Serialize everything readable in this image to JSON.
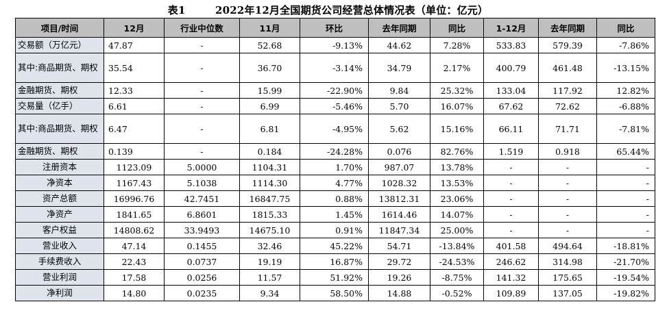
{
  "title": "表1        2022年12月全国期货公司经营总体情况表（单位：亿元）",
  "headers": [
    "项目/时间",
    "12月",
    "行业中位数",
    "11月",
    "环比",
    "去年同期",
    "同比",
    "1-12月",
    "去年同期",
    "同比"
  ],
  "rows": [
    {
      "label": "交易额（万亿元）",
      "cells": [
        "47.87",
        "-",
        "52.68",
        "-9.13%",
        "44.62",
        "7.28%",
        "533.83",
        "579.39",
        "-7.86%"
      ]
    },
    {
      "label": "其中:商品期货、期权",
      "cells": [
        "35.54",
        "-",
        "36.70",
        "-3.14%",
        "34.79",
        "2.17%",
        "400.79",
        "461.48",
        "-13.15%"
      ]
    },
    {
      "label": "金融期货、期权",
      "cells": [
        "12.33",
        "-",
        "15.99",
        "-22.90%",
        "9.84",
        "25.32%",
        "133.04",
        "117.92",
        "12.82%"
      ]
    },
    {
      "label": "交易量（亿手）",
      "cells": [
        "6.61",
        "-",
        "6.99",
        "-5.46%",
        "5.70",
        "16.07%",
        "67.62",
        "72.62",
        "-6.88%"
      ]
    },
    {
      "label": "其中:商品期货、期权",
      "cells": [
        "6.47",
        "-",
        "6.81",
        "-4.95%",
        "5.62",
        "15.16%",
        "66.11",
        "71.71",
        "-7.81%"
      ]
    },
    {
      "label": "金融期货、期权",
      "cells": [
        "0.139",
        "-",
        "0.184",
        "-24.28%",
        "0.076",
        "82.76%",
        "1.519",
        "0.918",
        "65.44%"
      ]
    },
    {
      "label": "注册资本",
      "cells": [
        "1123.09",
        "5.0000",
        "1104.31",
        "1.70%",
        "987.07",
        "13.78%",
        "-",
        "-",
        "-"
      ]
    },
    {
      "label": "净资本",
      "cells": [
        "1167.43",
        "5.1038",
        "1114.30",
        "4.77%",
        "1028.32",
        "13.53%",
        "-",
        "-",
        "-"
      ]
    },
    {
      "label": "资产总额",
      "cells": [
        "16996.76",
        "42.7451",
        "16847.75",
        "0.88%",
        "13812.31",
        "23.06%",
        "-",
        "-",
        "-"
      ]
    },
    {
      "label": "净资产",
      "cells": [
        "1841.65",
        "6.8601",
        "1815.33",
        "1.45%",
        "1614.46",
        "14.07%",
        "-",
        "-",
        "-"
      ]
    },
    {
      "label": "客户权益",
      "cells": [
        "14808.62",
        "33.9493",
        "14675.10",
        "0.91%",
        "11847.34",
        "25.00%",
        "-",
        "-",
        "-"
      ]
    },
    {
      "label": "营业收入",
      "cells": [
        "47.14",
        "0.1455",
        "32.46",
        "45.22%",
        "54.71",
        "-13.84%",
        "401.58",
        "494.64",
        "-18.81%"
      ]
    },
    {
      "label": "手续费收入",
      "cells": [
        "22.43",
        "0.0737",
        "19.19",
        "16.87%",
        "29.72",
        "-24.53%",
        "246.62",
        "314.98",
        "-21.70%"
      ]
    },
    {
      "label": "营业利润",
      "cells": [
        "17.58",
        "0.0256",
        "11.57",
        "51.92%",
        "19.26",
        "-8.75%",
        "141.32",
        "175.65",
        "-19.54%"
      ]
    },
    {
      "label": "净利润",
      "cells": [
        "14.80",
        "0.0235",
        "9.34",
        "58.50%",
        "14.88",
        "-0.52%",
        "109.89",
        "137.05",
        "-19.82%"
      ]
    }
  ]
}
